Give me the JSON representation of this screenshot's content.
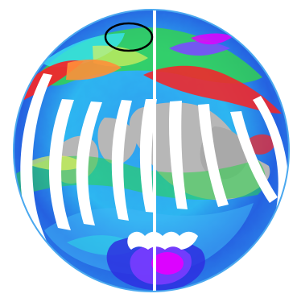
{
  "map": {
    "projection": "orthographic",
    "colors": {
      "background": "#ffffff",
      "no_data_land": "#b7b7b7",
      "swath_gap": "#ffffff",
      "ocean_low": "#1f3fd8",
      "ocean_mid": "#2f9bf0",
      "ocean_cyan": "#25d8e6",
      "green": "#37e03c",
      "yellow": "#e7f25a",
      "orange": "#ff8f3a",
      "red": "#f0282c",
      "magenta": "#e200ff",
      "marker_ring": "#000000"
    },
    "features": [
      "orbital-swath-gaps",
      "gray-land-no-data",
      "antarctic-magenta-maximum",
      "black-circle-marker"
    ]
  }
}
